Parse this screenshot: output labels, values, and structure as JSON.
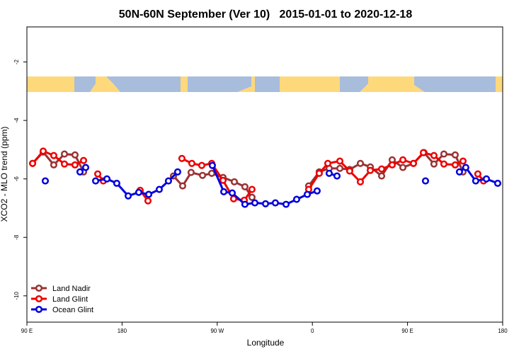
{
  "chart_data": {
    "type": "line",
    "title": "50N-60N September (Ver 10)   2015-01-01 to 2020-12-18",
    "x_label": "Longitude",
    "y_label": "XCO2 - MLO trend (ppm)",
    "xlim": [
      90,
      540
    ],
    "ylim": [
      -10.9,
      -0.8
    ],
    "xticks": [
      {
        "value": 90,
        "label": "90 E"
      },
      180,
      {
        "value": 270,
        "label": "90 W"
      },
      {
        "value": 360,
        "label": "0"
      },
      {
        "value": 450,
        "label": "90 E"
      },
      {
        "value": 540,
        "label": "180"
      }
    ],
    "yticks": [
      -2,
      -4,
      -6,
      -8,
      -10
    ],
    "legend": "bottom-left",
    "series": [
      {
        "name": "Land Nadir",
        "color": "#993333",
        "x": [
          95.4,
          105.4,
          115.4,
          125.5,
          135.5,
          143.6,
          null,
          197.1,
          null,
          228.6,
          237.3,
          245.3,
          256.1,
          264.8,
          275.5,
          286.2,
          296.2,
          302.9,
          null,
          356.5,
          366.5,
          375.9,
          386.0,
          395.3,
          405.4,
          414.8,
          425.5,
          435.5,
          445.6,
          455.6,
          465.6,
          475.0,
          484.4,
          495.1,
          502.5
        ],
        "values": [
          -5.47,
          -5.08,
          -5.52,
          -5.15,
          -5.18,
          -5.76,
          null,
          -6.41,
          null,
          -5.9,
          -6.24,
          -5.78,
          -5.88,
          -5.81,
          -5.95,
          -6.1,
          -6.27,
          -6.63,
          null,
          -6.24,
          -5.76,
          -5.64,
          -5.64,
          -5.68,
          -5.47,
          -5.59,
          -5.9,
          -5.35,
          -5.61,
          -5.47,
          -5.1,
          -5.49,
          -5.15,
          -5.18,
          -5.76
        ]
      },
      {
        "name": "Land Glint",
        "color": "#ee0000",
        "x": [
          95.4,
          105.4,
          115.4,
          125.5,
          135.5,
          143.6,
          null,
          157.0,
          162.3,
          null,
          197.1,
          204.5,
          null,
          236.6,
          246.0,
          255.4,
          264.8,
          275.5,
          285.5,
          295.6,
          302.9,
          null,
          356.5,
          366.5,
          374.6,
          386.0,
          395.3,
          405.4,
          414.8,
          425.5,
          435.5,
          445.6,
          455.6,
          465.0,
          475.0,
          484.4,
          495.1,
          502.5,
          null,
          516.5,
          521.9
        ],
        "values": [
          -5.47,
          -5.05,
          -5.2,
          -5.49,
          -5.52,
          -5.37,
          null,
          -5.83,
          -6.07,
          null,
          -6.39,
          -6.75,
          null,
          -5.3,
          -5.47,
          -5.54,
          -5.47,
          -6.05,
          -6.68,
          -6.73,
          -6.36,
          null,
          -6.36,
          -5.81,
          -5.47,
          -5.39,
          -5.73,
          -6.1,
          -5.71,
          -5.66,
          -5.52,
          -5.35,
          -5.47,
          -5.1,
          -5.2,
          -5.49,
          -5.52,
          -5.39,
          null,
          -5.83,
          -6.07
        ]
      },
      {
        "name": "Ocean Glint",
        "color": "#0000dd",
        "x": [
          107.4,
          null,
          140.2,
          145.6,
          null,
          155.0,
          165.7,
          175.0,
          185.8,
          195.8,
          205.2,
          215.2,
          223.9,
          232.6,
          null,
          265.4,
          276.2,
          284.2,
          296.2,
          305.6,
          315.7,
          325.0,
          335.1,
          345.1,
          355.2,
          364.5,
          null,
          375.9,
          383.3,
          null,
          467.0,
          null,
          499.1,
          505.1,
          514.5,
          524.6,
          535.3
        ],
        "values": [
          -6.07,
          null,
          -5.76,
          -5.61,
          null,
          -6.07,
          -6.0,
          -6.15,
          -6.58,
          -6.46,
          -6.53,
          -6.36,
          -6.07,
          -5.76,
          null,
          -5.54,
          -6.44,
          -6.48,
          -6.87,
          -6.82,
          -6.85,
          -6.82,
          -6.87,
          -6.7,
          -6.53,
          -6.41,
          null,
          -5.81,
          -5.9,
          null,
          -6.07,
          null,
          -5.76,
          -5.61,
          -6.07,
          -6.0,
          -6.15
        ]
      }
    ]
  }
}
